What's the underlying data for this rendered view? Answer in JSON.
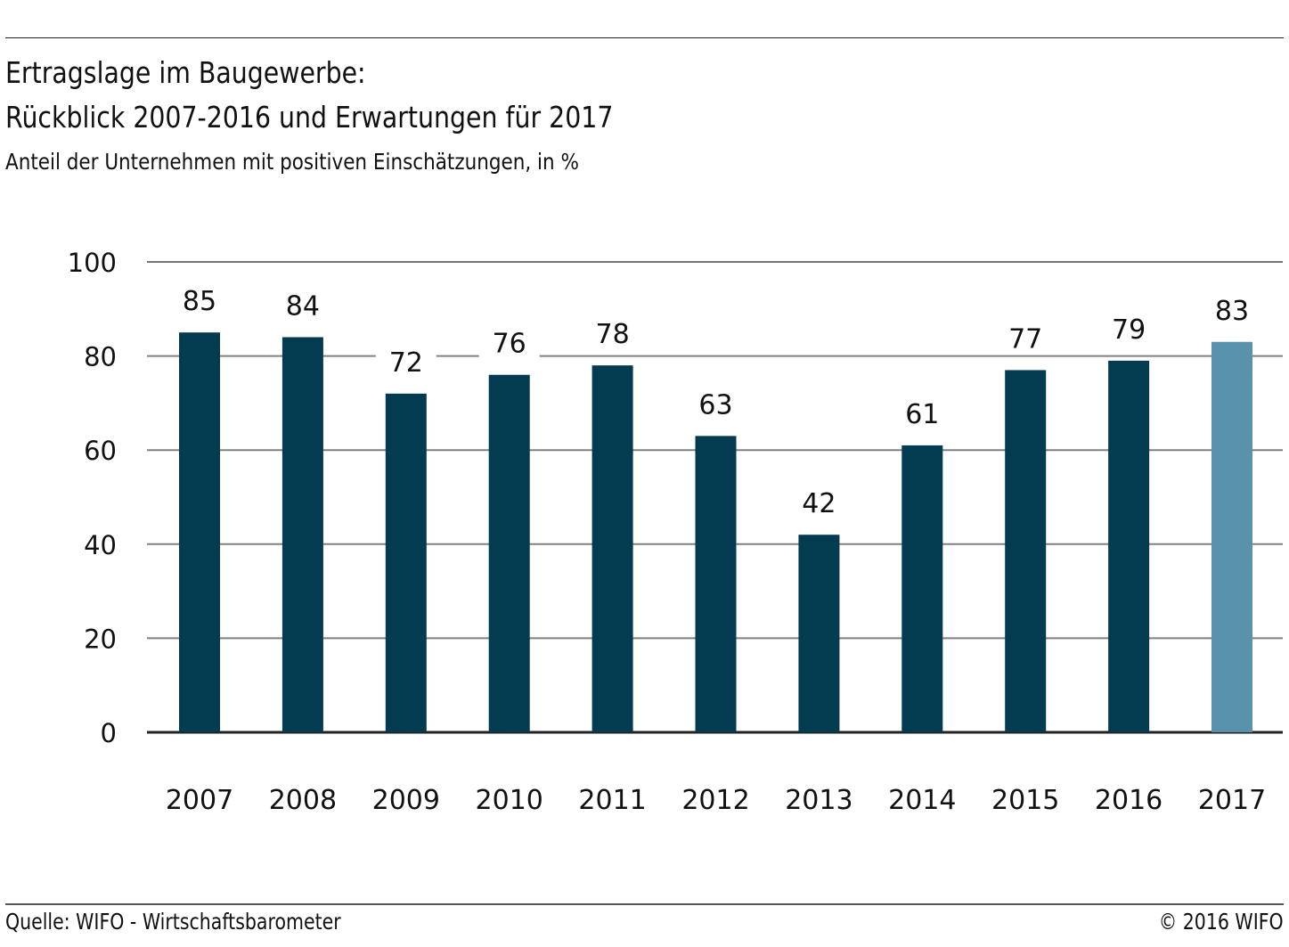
{
  "header": {
    "title_line1": "Ertragslage im Baugewerbe:",
    "title_line2": "Rückblick 2007-2016 und Erwartungen für 2017",
    "subtitle": "Anteil der Unternehmen mit positiven Einschätzungen, in %"
  },
  "footer": {
    "source": "Quelle: WIFO - Wirtschaftsbarometer",
    "copyright": "© 2016 WIFO"
  },
  "colors": {
    "bar_actual": "#033b51",
    "bar_expectation": "#5893ab",
    "grid": "#808080",
    "grid_top": "#222222",
    "baseline": "#222222"
  },
  "chart_data": {
    "type": "bar",
    "title": "Ertragslage im Baugewerbe: Rückblick 2007-2016 und Erwartungen für 2017",
    "subtitle": "Anteil der Unternehmen mit positiven Einschätzungen, in %",
    "xlabel": "",
    "ylabel": "",
    "categories": [
      "2007",
      "2008",
      "2009",
      "2010",
      "2011",
      "2012",
      "2013",
      "2014",
      "2015",
      "2016",
      "2017"
    ],
    "values": [
      85,
      84,
      72,
      76,
      78,
      63,
      42,
      61,
      77,
      79,
      83
    ],
    "data_labels": [
      "85",
      "84",
      "72",
      "76",
      "78",
      "63",
      "42",
      "61",
      "77",
      "79",
      "83"
    ],
    "highlight": [
      false,
      false,
      false,
      false,
      false,
      false,
      false,
      false,
      false,
      false,
      true
    ],
    "highlight_meaning": "2017 = Erwartung (expectation)",
    "ylim": [
      0,
      100
    ],
    "yticks": [
      0,
      20,
      40,
      60,
      80,
      100
    ],
    "ytick_labels": [
      "0",
      "20",
      "40",
      "60",
      "80",
      "100"
    ],
    "grid": true,
    "legend": "none"
  }
}
